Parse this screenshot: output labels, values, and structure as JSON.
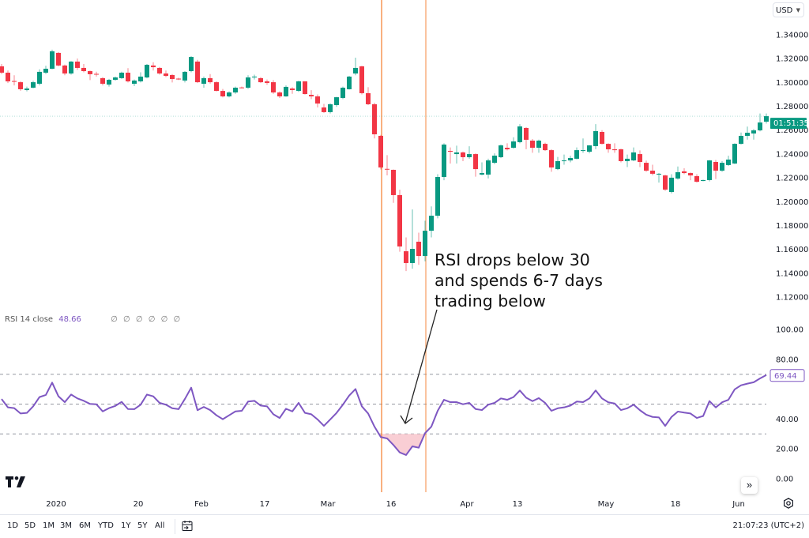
{
  "header": {
    "currency": "USD"
  },
  "price_axis": {
    "ticks": [
      1.34,
      1.32,
      1.3,
      1.28,
      1.26,
      1.24,
      1.22,
      1.2,
      1.18,
      1.16,
      1.14,
      1.12
    ],
    "countdown": "01:51:35"
  },
  "rsi": {
    "legend_title": "RSI 14 close",
    "legend_value": "48.66",
    "legend_extra": "∅ ∅ ∅ ∅ ∅ ∅",
    "last_value_label": "69.44",
    "ticks": [
      100,
      80,
      40,
      20,
      0
    ],
    "levels": [
      70,
      50,
      30
    ],
    "oversold_level": 30
  },
  "annotation": {
    "lines": [
      "RSI drops below 30",
      "and spends 6-7 days",
      "trading below"
    ],
    "marker_dates": [
      "2020-03-13",
      "2020-03-24"
    ]
  },
  "time_axis": [
    {
      "label": "2020",
      "date": "2020-01-01"
    },
    {
      "label": "20",
      "date": "2020-01-20"
    },
    {
      "label": "Feb",
      "date": "2020-02-03"
    },
    {
      "label": "17",
      "date": "2020-02-17"
    },
    {
      "label": "Mar",
      "date": "2020-03-02"
    },
    {
      "label": "16",
      "date": "2020-03-16"
    },
    {
      "label": "Apr",
      "date": "2020-04-01"
    },
    {
      "label": "13",
      "date": "2020-04-13"
    },
    {
      "label": "May",
      "date": "2020-05-01"
    },
    {
      "label": "18",
      "date": "2020-05-18"
    },
    {
      "label": "Jun",
      "date": "2020-06-01"
    }
  ],
  "toolbar": {
    "ranges": [
      "1D",
      "5D",
      "1M",
      "3M",
      "6M",
      "YTD",
      "1Y",
      "5Y",
      "All"
    ],
    "clock": "21:07:23 (UTC+2)",
    "scroll_label": "»"
  },
  "icons": {
    "logo": "tradingview-logo",
    "calendar": "calendar-goto-icon",
    "settings": "gear-icon",
    "scroll": "scroll-to-realtime-icon"
  },
  "colors": {
    "up": "#089981",
    "down": "#f23645",
    "rsi": "#7e57c2",
    "marker_line": "#f57c2b",
    "oversold_fill": "#f8c6cc"
  },
  "chart_data": [
    {
      "type": "candlestick",
      "grid": false,
      "ylim": [
        1.12,
        1.34
      ],
      "fields": [
        "date",
        "open",
        "high",
        "low",
        "close"
      ],
      "candles": [
        [
          "2019-12-20",
          1.3135,
          1.3155,
          1.307,
          1.3082
        ],
        [
          "2019-12-23",
          1.3082,
          1.31,
          1.2995,
          1.3009
        ],
        [
          "2019-12-24",
          1.3012,
          1.306,
          1.2975,
          1.3009
        ],
        [
          "2019-12-25",
          1.3002,
          1.301,
          1.293,
          1.2943
        ],
        [
          "2019-12-26",
          1.2936,
          1.2965,
          1.2925,
          1.2949
        ],
        [
          "2019-12-27",
          1.2956,
          1.3015,
          1.295,
          1.3002
        ],
        [
          "2019-12-30",
          1.2989,
          1.311,
          1.2975,
          1.3089
        ],
        [
          "2019-12-31",
          1.3082,
          1.314,
          1.307,
          1.3115
        ],
        [
          "2020-01-01",
          1.3115,
          1.3275,
          1.311,
          1.3261
        ],
        [
          "2020-01-02",
          1.3248,
          1.3255,
          1.3135,
          1.3142
        ],
        [
          "2020-01-03",
          1.3142,
          1.315,
          1.306,
          1.3075
        ],
        [
          "2020-01-06",
          1.3075,
          1.318,
          1.3065,
          1.3175
        ],
        [
          "2020-01-07",
          1.3175,
          1.32,
          1.3105,
          1.3122
        ],
        [
          "2020-01-08",
          1.3122,
          1.3155,
          1.3085,
          1.3095
        ],
        [
          "2020-01-09",
          1.3095,
          1.31,
          1.302,
          1.3069
        ],
        [
          "2020-01-10",
          1.3072,
          1.309,
          1.305,
          1.3069
        ],
        [
          "2020-01-13",
          1.3036,
          1.3045,
          1.2975,
          1.2989
        ],
        [
          "2020-01-14",
          1.2982,
          1.303,
          1.2965,
          1.3022
        ],
        [
          "2020-01-15",
          1.3022,
          1.305,
          1.3015,
          1.3042
        ],
        [
          "2020-01-16",
          1.3036,
          1.309,
          1.303,
          1.3082
        ],
        [
          "2020-01-17",
          1.3082,
          1.312,
          1.3,
          1.3009
        ],
        [
          "2020-01-20",
          1.2989,
          1.3025,
          1.297,
          1.3016
        ],
        [
          "2020-01-21",
          1.3009,
          1.3085,
          1.3,
          1.3049
        ],
        [
          "2020-01-22",
          1.3042,
          1.3155,
          1.3035,
          1.3148
        ],
        [
          "2020-01-23",
          1.3142,
          1.317,
          1.31,
          1.3128
        ],
        [
          "2020-01-24",
          1.3122,
          1.313,
          1.3065,
          1.3075
        ],
        [
          "2020-01-27",
          1.3075,
          1.31,
          1.3045,
          1.3055
        ],
        [
          "2020-01-28",
          1.3062,
          1.307,
          1.3,
          1.3029
        ],
        [
          "2020-01-29",
          1.3032,
          1.304,
          1.302,
          1.3029
        ],
        [
          "2020-01-30",
          1.3016,
          1.3095,
          1.3,
          1.3089
        ],
        [
          "2020-01-31",
          1.3095,
          1.322,
          1.3085,
          1.3214
        ],
        [
          "2020-02-03",
          1.3175,
          1.319,
          1.2995,
          1.3002
        ],
        [
          "2020-02-04",
          1.2989,
          1.305,
          1.2955,
          1.3036
        ],
        [
          "2020-02-05",
          1.3036,
          1.307,
          1.299,
          1.3002
        ],
        [
          "2020-02-06",
          1.3002,
          1.301,
          1.2925,
          1.2929
        ],
        [
          "2020-02-07",
          1.2929,
          1.2945,
          1.2875,
          1.2883
        ],
        [
          "2020-02-10",
          1.2883,
          1.2925,
          1.2875,
          1.2916
        ],
        [
          "2020-02-11",
          1.2916,
          1.2965,
          1.2905,
          1.2956
        ],
        [
          "2020-02-12",
          1.2958,
          1.2965,
          1.295,
          1.2956
        ],
        [
          "2020-02-13",
          1.2956,
          1.306,
          1.2945,
          1.3042
        ],
        [
          "2020-02-14",
          1.3045,
          1.3065,
          1.3025,
          1.3049
        ],
        [
          "2020-02-17",
          1.3036,
          1.3045,
          1.2995,
          1.3002
        ],
        [
          "2020-02-18",
          1.3009,
          1.3025,
          1.298,
          1.2996
        ],
        [
          "2020-02-19",
          1.3002,
          1.302,
          1.2905,
          1.2916
        ],
        [
          "2020-02-20",
          1.2916,
          1.2925,
          1.287,
          1.2883
        ],
        [
          "2020-02-21",
          1.2883,
          1.2975,
          1.288,
          1.2963
        ],
        [
          "2020-02-24",
          1.2949,
          1.296,
          1.2905,
          1.2936
        ],
        [
          "2020-02-25",
          1.2929,
          1.3015,
          1.292,
          1.3009
        ],
        [
          "2020-02-26",
          1.3009,
          1.301,
          1.2898,
          1.2903
        ],
        [
          "2020-02-27",
          1.2896,
          1.2935,
          1.286,
          1.2883
        ],
        [
          "2020-02-28",
          1.2883,
          1.29,
          1.279,
          1.2823
        ],
        [
          "2020-03-02",
          1.279,
          1.282,
          1.2745,
          1.2751
        ],
        [
          "2020-03-03",
          1.2751,
          1.2825,
          1.274,
          1.2817
        ],
        [
          "2020-03-04",
          1.281,
          1.288,
          1.2795,
          1.2876
        ],
        [
          "2020-03-05",
          1.287,
          1.2965,
          1.286,
          1.2956
        ],
        [
          "2020-03-06",
          1.2943,
          1.3055,
          1.294,
          1.3049
        ],
        [
          "2020-03-09",
          1.3075,
          1.3208,
          1.306,
          1.3122
        ],
        [
          "2020-03-10",
          1.3135,
          1.314,
          1.29,
          1.291
        ],
        [
          "2020-03-11",
          1.291,
          1.296,
          1.281,
          1.2817
        ],
        [
          "2020-03-12",
          1.2817,
          1.283,
          1.253,
          1.2565
        ],
        [
          "2020-03-13",
          1.2552,
          1.256,
          1.227,
          1.2287
        ],
        [
          "2020-03-16",
          1.2275,
          1.239,
          1.222,
          1.2273
        ],
        [
          "2020-03-17",
          1.2267,
          1.227,
          1.199,
          1.2055
        ],
        [
          "2020-03-18",
          1.2055,
          1.21,
          1.158,
          1.1624
        ],
        [
          "2020-03-19",
          1.1584,
          1.17,
          1.1418,
          1.1485
        ],
        [
          "2020-03-20",
          1.1485,
          1.1935,
          1.1438,
          1.1604
        ],
        [
          "2020-03-23",
          1.1664,
          1.174,
          1.147,
          1.1544
        ],
        [
          "2020-03-24",
          1.1544,
          1.184,
          1.15,
          1.1756
        ],
        [
          "2020-03-25",
          1.1756,
          1.196,
          1.17,
          1.1882
        ],
        [
          "2020-03-26",
          1.1882,
          1.223,
          1.186,
          1.2207
        ],
        [
          "2020-03-27",
          1.2207,
          1.249,
          1.218,
          1.2479
        ],
        [
          "2020-03-30",
          1.2426,
          1.2455,
          1.232,
          1.2419
        ],
        [
          "2020-03-31",
          1.2399,
          1.247,
          1.232,
          1.2413
        ],
        [
          "2020-04-01",
          1.2413,
          1.242,
          1.234,
          1.2373
        ],
        [
          "2020-04-02",
          1.2373,
          1.2465,
          1.236,
          1.2399
        ],
        [
          "2020-04-03",
          1.2399,
          1.2405,
          1.221,
          1.2273
        ],
        [
          "2020-04-06",
          1.2227,
          1.233,
          1.222,
          1.224
        ],
        [
          "2020-04-07",
          1.2227,
          1.236,
          1.2195,
          1.2346
        ],
        [
          "2020-04-08",
          1.2326,
          1.2405,
          1.2315,
          1.2386
        ],
        [
          "2020-04-09",
          1.2373,
          1.248,
          1.2365,
          1.2472
        ],
        [
          "2020-04-10",
          1.2452,
          1.249,
          1.243,
          1.2439
        ],
        [
          "2020-04-13",
          1.2452,
          1.254,
          1.2445,
          1.2505
        ],
        [
          "2020-04-14",
          1.2499,
          1.265,
          1.249,
          1.2631
        ],
        [
          "2020-04-15",
          1.2618,
          1.2625,
          1.244,
          1.2519
        ],
        [
          "2020-04-16",
          1.2512,
          1.2525,
          1.241,
          1.2452
        ],
        [
          "2020-04-17",
          1.2452,
          1.252,
          1.241,
          1.2512
        ],
        [
          "2020-04-20",
          1.2485,
          1.2495,
          1.2425,
          1.2432
        ],
        [
          "2020-04-21",
          1.2432,
          1.244,
          1.225,
          1.2287
        ],
        [
          "2020-04-22",
          1.2273,
          1.2375,
          1.2265,
          1.234
        ],
        [
          "2020-04-23",
          1.234,
          1.2395,
          1.231,
          1.2346
        ],
        [
          "2020-04-24",
          1.2346,
          1.2385,
          1.233,
          1.2366
        ],
        [
          "2020-04-27",
          1.236,
          1.2455,
          1.2355,
          1.2432
        ],
        [
          "2020-04-28",
          1.243,
          1.253,
          1.241,
          1.2432
        ],
        [
          "2020-04-29",
          1.2419,
          1.2475,
          1.2405,
          1.2472
        ],
        [
          "2020-04-30",
          1.2466,
          1.265,
          1.244,
          1.2592
        ],
        [
          "2020-05-01",
          1.2585,
          1.26,
          1.248,
          1.2485
        ],
        [
          "2020-05-04",
          1.2485,
          1.249,
          1.241,
          1.2439
        ],
        [
          "2020-05-05",
          1.2439,
          1.249,
          1.241,
          1.2432
        ],
        [
          "2020-05-06",
          1.2439,
          1.2445,
          1.233,
          1.234
        ],
        [
          "2020-05-07",
          1.234,
          1.2395,
          1.229,
          1.236
        ],
        [
          "2020-05-08",
          1.2346,
          1.2455,
          1.234,
          1.2413
        ],
        [
          "2020-05-11",
          1.2399,
          1.243,
          1.229,
          1.2333
        ],
        [
          "2020-05-12",
          1.2326,
          1.2345,
          1.225,
          1.226
        ],
        [
          "2020-05-13",
          1.226,
          1.231,
          1.222,
          1.2234
        ],
        [
          "2020-05-14",
          1.2227,
          1.224,
          1.216,
          1.2234
        ],
        [
          "2020-05-15",
          1.222,
          1.2225,
          1.209,
          1.2101
        ],
        [
          "2020-05-18",
          1.2081,
          1.223,
          1.207,
          1.2201
        ],
        [
          "2020-05-19",
          1.2194,
          1.2295,
          1.2185,
          1.2247
        ],
        [
          "2020-05-20",
          1.2254,
          1.228,
          1.223,
          1.224
        ],
        [
          "2020-05-21",
          1.224,
          1.2245,
          1.218,
          1.222
        ],
        [
          "2020-05-22",
          1.2214,
          1.223,
          1.216,
          1.2167
        ],
        [
          "2020-05-25",
          1.2174,
          1.2185,
          1.217,
          1.2181
        ],
        [
          "2020-05-26",
          1.2181,
          1.235,
          1.217,
          1.2346
        ],
        [
          "2020-05-27",
          1.2333,
          1.235,
          1.219,
          1.226
        ],
        [
          "2020-05-28",
          1.226,
          1.234,
          1.225,
          1.2326
        ],
        [
          "2020-05-29",
          1.2307,
          1.2385,
          1.23,
          1.2353
        ],
        [
          "2020-06-01",
          1.232,
          1.249,
          1.2315,
          1.2485
        ],
        [
          "2020-06-02",
          1.2485,
          1.258,
          1.248,
          1.2552
        ],
        [
          "2020-06-03",
          1.2552,
          1.263,
          1.252,
          1.2578
        ],
        [
          "2020-06-04",
          1.2572,
          1.261,
          1.252,
          1.2598
        ],
        [
          "2020-06-05",
          1.2598,
          1.274,
          1.259,
          1.2664
        ],
        [
          "2020-06-08",
          1.2671,
          1.274,
          1.2655,
          1.2717
        ]
      ]
    },
    {
      "type": "line",
      "ylim": [
        0,
        100
      ],
      "hlines": [
        70,
        50,
        30
      ],
      "values": [
        53.4,
        47.8,
        47.3,
        43.7,
        44.1,
        48.5,
        54.7,
        56.1,
        64.4,
        55.2,
        51.3,
        56.4,
        53.8,
        52.2,
        50.1,
        49.9,
        45.1,
        47.3,
        48.8,
        51.5,
        46.7,
        46.6,
        49.6,
        56.4,
        55.2,
        50.8,
        49.6,
        47.2,
        46.6,
        53.4,
        61.0,
        45.9,
        48.1,
        46.0,
        42.5,
        39.9,
        42.5,
        45.1,
        45.5,
        51.7,
        52.2,
        49.0,
        48.5,
        43.2,
        40.7,
        46.9,
        45.1,
        50.8,
        44.1,
        43.2,
        39.7,
        35.4,
        39.7,
        44.1,
        49.6,
        55.7,
        60.1,
        48.5,
        43.7,
        34.9,
        27.9,
        27.0,
        22.6,
        17.6,
        15.9,
        21.7,
        20.8,
        30.5,
        34.9,
        45.5,
        52.9,
        51.3,
        51.3,
        49.9,
        50.8,
        46.7,
        46.0,
        49.6,
        50.8,
        53.8,
        52.9,
        54.7,
        59.1,
        54.3,
        52.0,
        54.0,
        50.8,
        45.5,
        47.2,
        47.8,
        49.0,
        51.7,
        51.3,
        53.8,
        59.1,
        53.8,
        51.2,
        50.4,
        46.0,
        47.2,
        49.6,
        45.9,
        42.9,
        41.4,
        41.1,
        35.4,
        41.4,
        45.0,
        44.3,
        43.7,
        40.7,
        42.0,
        52.0,
        47.8,
        51.2,
        52.9,
        59.9,
        62.6,
        63.7,
        64.6,
        67.2,
        69.44
      ]
    }
  ]
}
